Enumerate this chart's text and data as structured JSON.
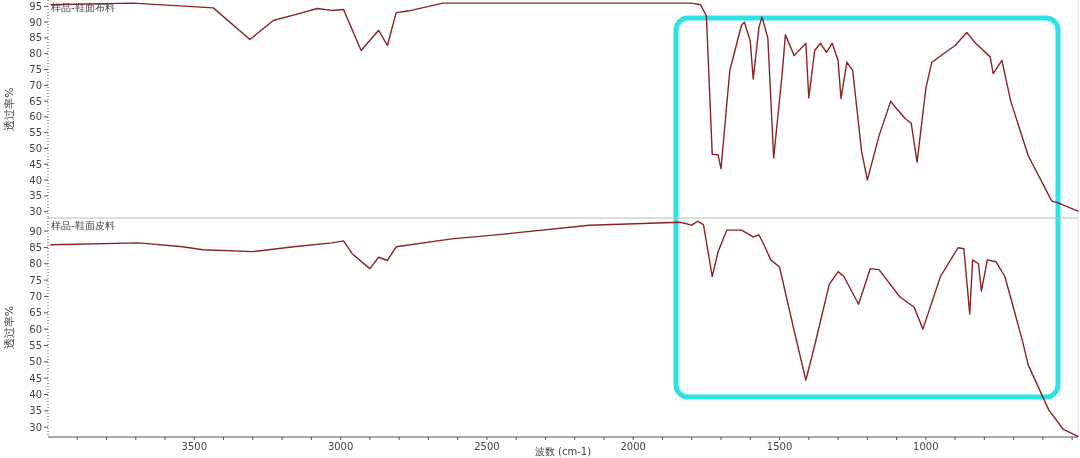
{
  "chart_data": [
    {
      "type": "line",
      "ylabel": "透过率%",
      "tick_labels": "y",
      "xlim": [
        4000,
        480
      ],
      "ylim": [
        28,
        97
      ],
      "yticks": [
        30,
        35,
        40,
        45,
        50,
        55,
        60,
        65,
        70,
        75,
        80,
        85,
        90,
        95
      ],
      "series": [
        {
          "name": "样品-鞋面布料",
          "color": "#8b2323",
          "x": [
            3990,
            3710,
            3435,
            3310,
            3230,
            3130,
            3080,
            3030,
            2990,
            2930,
            2870,
            2840,
            2810,
            2770,
            2650,
            1800,
            1770,
            1750,
            1730,
            1710,
            1700,
            1670,
            1630,
            1620,
            1600,
            1590,
            1570,
            1560,
            1540,
            1520,
            1490,
            1480,
            1450,
            1410,
            1400,
            1380,
            1360,
            1340,
            1320,
            1300,
            1290,
            1270,
            1250,
            1220,
            1200,
            1160,
            1120,
            1110,
            1070,
            1050,
            1030,
            1000,
            980,
            940,
            900,
            860,
            830,
            780,
            770,
            740,
            710,
            650,
            570,
            540,
            480
          ],
          "values": [
            95.5,
            96,
            94.5,
            84.5,
            90.5,
            93,
            94.3,
            93.7,
            94,
            81,
            87.4,
            82.6,
            93,
            93.5,
            96,
            96,
            95.5,
            92,
            48.2,
            48,
            43.6,
            74.7,
            89,
            90,
            84,
            72,
            88.5,
            91.6,
            85,
            47,
            74.7,
            86,
            79.4,
            83.3,
            66,
            81,
            83.3,
            80.4,
            83.3,
            77.9,
            65.8,
            77.3,
            74.7,
            49.3,
            40,
            54,
            65,
            63.7,
            59.4,
            58,
            45.7,
            69,
            77.2,
            80,
            82.6,
            86.7,
            83.3,
            79,
            73.7,
            77.9,
            65,
            47.7,
            33.4,
            32.5,
            30.2
          ]
        }
      ]
    },
    {
      "type": "line",
      "ylabel": "透过率%",
      "xlabel": "波数 (cm-1)",
      "xlim": [
        4000,
        480
      ],
      "ylim": [
        27,
        94
      ],
      "yticks": [
        30,
        35,
        40,
        45,
        50,
        55,
        60,
        65,
        70,
        75,
        80,
        85,
        90
      ],
      "xticks": [
        {
          "value": 3900,
          "label": null
        },
        {
          "value": 3800,
          "label": null
        },
        {
          "value": 3700,
          "label": null
        },
        {
          "value": 3600,
          "label": null
        },
        3500,
        {
          "value": 3400,
          "label": null
        },
        {
          "value": 3300,
          "label": null
        },
        {
          "value": 3200,
          "label": null
        },
        {
          "value": 3100,
          "label": null
        },
        3000,
        {
          "value": 2900,
          "label": null
        },
        {
          "value": 2800,
          "label": null
        },
        {
          "value": 2700,
          "label": null
        },
        {
          "value": 2600,
          "label": null
        },
        2500,
        {
          "value": 2400,
          "label": null
        },
        {
          "value": 2300,
          "label": null
        },
        {
          "value": 2200,
          "label": null
        },
        {
          "value": 2100,
          "label": null
        },
        2000,
        {
          "value": 1900,
          "label": null
        },
        {
          "value": 1800,
          "label": null
        },
        {
          "value": 1700,
          "label": null
        },
        {
          "value": 1600,
          "label": null
        },
        1500,
        {
          "value": 1400,
          "label": null
        },
        {
          "value": 1300,
          "label": null
        },
        {
          "value": 1200,
          "label": null
        },
        {
          "value": 1100,
          "label": null
        },
        1000,
        {
          "value": 900,
          "label": null
        },
        {
          "value": 800,
          "label": null
        },
        {
          "value": 700,
          "label": null
        },
        {
          "value": 600,
          "label": null
        },
        {
          "value": 500,
          "label": null
        }
      ],
      "series": [
        {
          "name": "样品-鞋面皮料",
          "color": "#8b2323",
          "x": [
            3990,
            3690,
            3540,
            3470,
            3300,
            3160,
            3030,
            2990,
            2960,
            2900,
            2870,
            2840,
            2810,
            2620,
            2450,
            2150,
            1840,
            1800,
            1780,
            1760,
            1730,
            1710,
            1680,
            1630,
            1590,
            1570,
            1550,
            1530,
            1500,
            1450,
            1410,
            1380,
            1330,
            1300,
            1280,
            1230,
            1190,
            1160,
            1090,
            1040,
            1010,
            950,
            890,
            870,
            850,
            840,
            820,
            810,
            790,
            760,
            730,
            670,
            650,
            580,
            530,
            480
          ],
          "values": [
            85.8,
            86.4,
            85.2,
            84.3,
            83.7,
            85.2,
            86.4,
            87,
            83,
            78.5,
            82,
            81,
            85.2,
            87.6,
            89,
            91.8,
            92.7,
            91.8,
            93,
            92,
            76.1,
            83.7,
            90.3,
            90.3,
            88.2,
            88.8,
            85.2,
            81.2,
            79,
            59.5,
            44.4,
            55,
            73.7,
            77.6,
            76.1,
            67.6,
            78.5,
            78.2,
            70,
            66.7,
            60,
            76.1,
            84.9,
            84.6,
            64.6,
            81.2,
            80,
            71.6,
            81.2,
            80.6,
            76.1,
            56.5,
            49,
            35.3,
            29.3,
            27.2
          ]
        }
      ]
    }
  ]
}
